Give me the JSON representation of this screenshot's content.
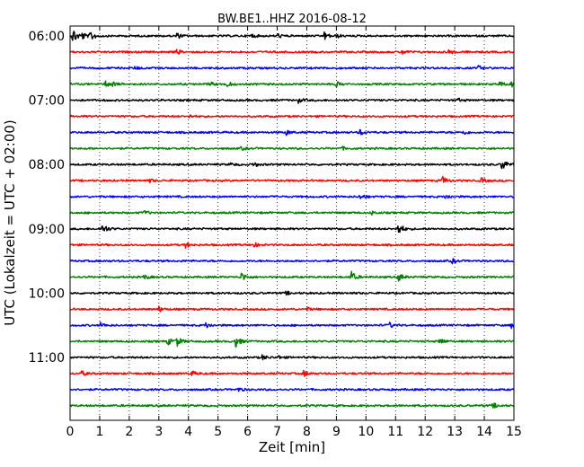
{
  "chart_data": {
    "type": "line",
    "title": "BW.BE1..HHZ 2016-08-12",
    "xlabel": "Zeit  [min]",
    "ylabel": "UTC (Lokalzeit = UTC + 02:00)",
    "xlim": [
      0,
      15
    ],
    "x_ticks": [
      "0",
      "1",
      "2",
      "3",
      "4",
      "5",
      "6",
      "7",
      "8",
      "9",
      "10",
      "11",
      "12",
      "13",
      "14",
      "15"
    ],
    "y_tick_labels": [
      "06:00",
      "07:00",
      "08:00",
      "09:00",
      "10:00",
      "11:00"
    ],
    "grid": "vertical dotted",
    "trace_interval_min": 15,
    "color_cycle": [
      "#000000",
      "#ff0000",
      "#0000ff",
      "#008000"
    ],
    "traces": [
      {
        "start": "06:00",
        "events": [
          [
            0.1,
            1.0
          ],
          [
            0.4,
            0.4
          ],
          [
            0.7,
            0.6
          ],
          [
            3.6,
            0.35
          ],
          [
            6.1,
            0.3
          ],
          [
            7.0,
            0.3
          ],
          [
            8.6,
            0.5
          ],
          [
            9.0,
            0.2
          ]
        ]
      },
      {
        "start": "06:15",
        "events": [
          [
            3.6,
            0.3
          ],
          [
            11.2,
            0.3
          ],
          [
            12.8,
            0.3
          ]
        ]
      },
      {
        "start": "06:30",
        "events": [
          [
            2.2,
            0.2
          ],
          [
            13.8,
            0.25
          ]
        ]
      },
      {
        "start": "06:45",
        "events": [
          [
            1.2,
            0.35
          ],
          [
            1.4,
            0.3
          ],
          [
            4.7,
            0.3
          ],
          [
            5.3,
            0.35
          ],
          [
            9.0,
            0.3
          ],
          [
            14.5,
            0.3
          ],
          [
            14.9,
            0.3
          ]
        ]
      },
      {
        "start": "07:00",
        "events": [
          [
            7.7,
            0.3
          ],
          [
            13.1,
            0.2
          ]
        ]
      },
      {
        "start": "07:15",
        "events": [
          [
            4.0,
            0.2
          ]
        ]
      },
      {
        "start": "07:30",
        "events": [
          [
            7.3,
            0.3
          ],
          [
            9.8,
            0.35
          ],
          [
            13.3,
            0.25
          ]
        ]
      },
      {
        "start": "07:45",
        "events": [
          [
            5.8,
            0.2
          ],
          [
            9.2,
            0.15
          ]
        ]
      },
      {
        "start": "08:00",
        "events": [
          [
            5.4,
            0.2
          ],
          [
            6.2,
            0.3
          ],
          [
            14.6,
            0.8
          ]
        ]
      },
      {
        "start": "08:15",
        "events": [
          [
            2.7,
            0.2
          ],
          [
            12.6,
            0.5
          ],
          [
            13.9,
            0.3
          ]
        ]
      },
      {
        "start": "08:30",
        "events": [
          [
            9.8,
            0.3
          ],
          [
            12.7,
            0.3
          ]
        ]
      },
      {
        "start": "08:45",
        "events": [
          [
            2.5,
            0.25
          ],
          [
            10.2,
            0.2
          ]
        ]
      },
      {
        "start": "09:00",
        "events": [
          [
            1.1,
            0.7
          ],
          [
            11.1,
            0.8
          ]
        ]
      },
      {
        "start": "09:15",
        "events": [
          [
            3.9,
            0.3
          ],
          [
            6.2,
            0.3
          ]
        ]
      },
      {
        "start": "09:30",
        "events": [
          [
            12.9,
            0.3
          ]
        ]
      },
      {
        "start": "09:45",
        "events": [
          [
            2.5,
            0.3
          ],
          [
            5.8,
            0.6
          ],
          [
            9.5,
            0.7
          ],
          [
            11.1,
            0.5
          ]
        ]
      },
      {
        "start": "10:00",
        "events": [
          [
            7.3,
            0.2
          ]
        ]
      },
      {
        "start": "10:15",
        "events": [
          [
            3.0,
            0.35
          ],
          [
            8.0,
            0.2
          ]
        ]
      },
      {
        "start": "10:30",
        "events": [
          [
            1.0,
            0.35
          ],
          [
            4.6,
            0.35
          ],
          [
            10.8,
            0.3
          ],
          [
            14.9,
            0.3
          ]
        ]
      },
      {
        "start": "10:45",
        "events": [
          [
            3.3,
            0.4
          ],
          [
            3.6,
            0.6
          ],
          [
            5.6,
            0.7
          ],
          [
            12.5,
            0.4
          ]
        ]
      },
      {
        "start": "11:00",
        "events": [
          [
            6.5,
            0.3
          ],
          [
            7.0,
            0.25
          ]
        ]
      },
      {
        "start": "11:15",
        "events": [
          [
            0.4,
            0.3
          ],
          [
            4.1,
            0.3
          ],
          [
            7.9,
            0.4
          ]
        ]
      },
      {
        "start": "11:30",
        "events": [
          [
            5.7,
            0.25
          ]
        ]
      },
      {
        "start": "11:45",
        "events": [
          [
            14.3,
            0.3
          ]
        ]
      }
    ]
  }
}
